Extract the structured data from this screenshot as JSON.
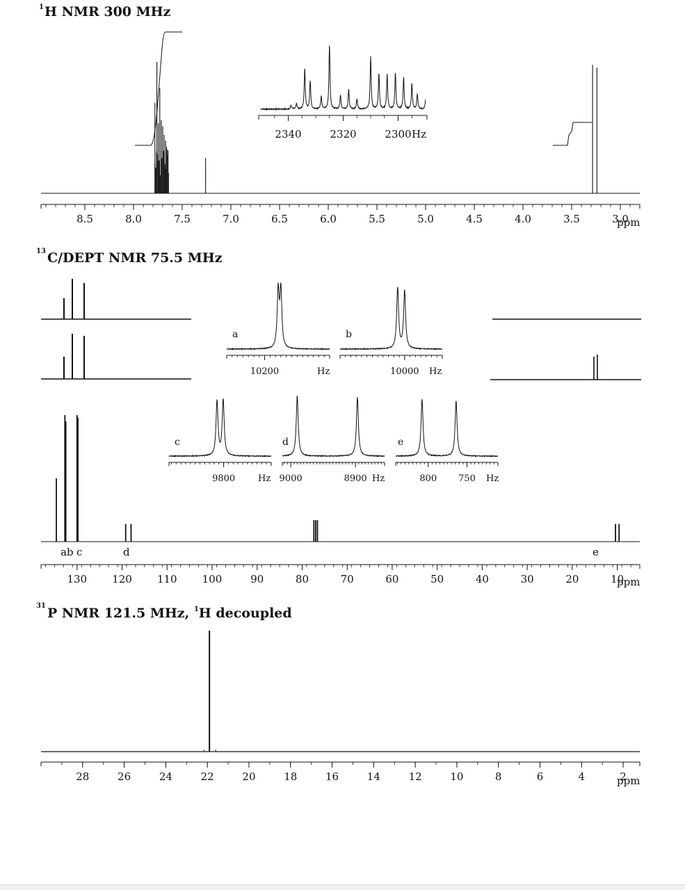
{
  "panels": {
    "h": {
      "title_sup": "1",
      "title": "H NMR 300 MHz",
      "unit": "ppm",
      "ticks": [
        "8.5",
        "8.0",
        "7.5",
        "7.0",
        "6.5",
        "6.0",
        "5.5",
        "5.0",
        "4.5",
        "4.0",
        "3.5",
        "3.0"
      ],
      "inset": {
        "unit": "Hz",
        "ticks": [
          "2340",
          "2320",
          "2300"
        ]
      }
    },
    "c": {
      "title_sup": "13",
      "title": "C/DEPT NMR 75.5 MHz",
      "unit": "ppm",
      "ticks": [
        "130",
        "120",
        "110",
        "100",
        "90",
        "80",
        "70",
        "60",
        "50",
        "40",
        "30",
        "20",
        "10"
      ],
      "peak_labels": [
        "ab",
        "c",
        "d",
        "e"
      ],
      "insets": [
        {
          "letter": "a",
          "ticks": [
            "10200"
          ],
          "unit": "Hz"
        },
        {
          "letter": "b",
          "ticks": [
            "10000"
          ],
          "unit": "Hz"
        },
        {
          "letter": "c",
          "ticks": [
            "9800"
          ],
          "unit": "Hz"
        },
        {
          "letter": "d",
          "ticks": [
            "9000",
            "8900"
          ],
          "unit": "Hz"
        },
        {
          "letter": "e",
          "ticks": [
            "800",
            "750"
          ],
          "unit": "Hz"
        }
      ]
    },
    "p": {
      "title_sup": "31",
      "title_pre": "P NMR 121.5 MHz, ",
      "title_sup2": "1",
      "title_post": "H decoupled",
      "unit": "ppm",
      "ticks": [
        "28",
        "26",
        "24",
        "22",
        "20",
        "18",
        "16",
        "14",
        "12",
        "10",
        "8",
        "6",
        "4",
        "2"
      ]
    }
  },
  "chart_data": [
    {
      "type": "line",
      "title": "1H NMR 300 MHz",
      "xlabel": "ppm",
      "x_reversed": true,
      "xlim": [
        8.95,
        2.8
      ],
      "peaks_ppm": [
        {
          "x": 7.78,
          "h": 0.62
        },
        {
          "x": 7.76,
          "h": 0.9
        },
        {
          "x": 7.745,
          "h": 0.48
        },
        {
          "x": 7.73,
          "h": 0.72
        },
        {
          "x": 7.715,
          "h": 0.5
        },
        {
          "x": 7.7,
          "h": 0.46
        },
        {
          "x": 7.685,
          "h": 0.4
        },
        {
          "x": 7.67,
          "h": 0.36
        },
        {
          "x": 7.655,
          "h": 0.3
        },
        {
          "x": 7.64,
          "h": 0.14
        },
        {
          "x": 7.26,
          "h": 0.24
        },
        {
          "x": 3.285,
          "h": 0.88
        },
        {
          "x": 3.24,
          "h": 0.86
        }
      ],
      "integrals": [
        {
          "from": 8.2,
          "to": 7.5
        },
        {
          "from": 3.5,
          "to": 2.98
        }
      ],
      "inset": {
        "xlabel": "Hz",
        "xlim": [
          2350,
          2290
        ],
        "peaks_hz": [
          {
            "x": 2339,
            "h": 0.05
          },
          {
            "x": 2337,
            "h": 0.08
          },
          {
            "x": 2334,
            "h": 0.58
          },
          {
            "x": 2332,
            "h": 0.4
          },
          {
            "x": 2328,
            "h": 0.18
          },
          {
            "x": 2325,
            "h": 0.92
          },
          {
            "x": 2321,
            "h": 0.2
          },
          {
            "x": 2318,
            "h": 0.28
          },
          {
            "x": 2315,
            "h": 0.14
          },
          {
            "x": 2310,
            "h": 0.75
          },
          {
            "x": 2307,
            "h": 0.52
          },
          {
            "x": 2304,
            "h": 0.5
          },
          {
            "x": 2301,
            "h": 0.52
          },
          {
            "x": 2298,
            "h": 0.45
          },
          {
            "x": 2295,
            "h": 0.36
          },
          {
            "x": 2293,
            "h": 0.22
          },
          {
            "x": 2290,
            "h": 0.14
          }
        ]
      }
    },
    {
      "type": "line",
      "title": "13C/DEPT NMR 75.5 MHz",
      "xlabel": "ppm",
      "x_reversed": true,
      "xlim": [
        138,
        5
      ],
      "peaks_ppm": [
        {
          "x": 134.6,
          "h": 0.5,
          "label": "a"
        },
        {
          "x": 132.7,
          "h": 1.0,
          "label": "b"
        },
        {
          "x": 132.5,
          "h": 0.95
        },
        {
          "x": 130.0,
          "h": 1.0,
          "label": "c"
        },
        {
          "x": 129.8,
          "h": 0.98
        },
        {
          "x": 119.2,
          "h": 0.14,
          "label": "d"
        },
        {
          "x": 118.0,
          "h": 0.14
        },
        {
          "x": 77.4,
          "h": 0.17
        },
        {
          "x": 77.0,
          "h": 0.17
        },
        {
          "x": 76.6,
          "h": 0.17
        },
        {
          "x": 10.4,
          "h": 0.14,
          "label": "e"
        },
        {
          "x": 9.6,
          "h": 0.14
        }
      ],
      "insets_hz": [
        {
          "label": "a",
          "xlim": [
            10270,
            10080
          ],
          "peaks": [
            {
              "x": 10175,
              "h": 1
            },
            {
              "x": 10170,
              "h": 1
            }
          ]
        },
        {
          "label": "b",
          "xlim": [
            10120,
            9930
          ],
          "peaks": [
            {
              "x": 10013,
              "h": 1
            },
            {
              "x": 10000,
              "h": 0.95
            }
          ]
        },
        {
          "label": "c",
          "xlim": [
            9915,
            9700
          ],
          "peaks": [
            {
              "x": 9814,
              "h": 0.95
            },
            {
              "x": 9801,
              "h": 0.97
            }
          ]
        },
        {
          "label": "d",
          "xlim": [
            9013,
            8855
          ],
          "peaks": [
            {
              "x": 8990,
              "h": 0.95
            },
            {
              "x": 8897,
              "h": 0.93
            }
          ]
        },
        {
          "label": "e",
          "xlim": [
            842,
            710
          ],
          "peaks": [
            {
              "x": 808,
              "h": 0.95
            },
            {
              "x": 764,
              "h": 0.92
            }
          ]
        }
      ]
    },
    {
      "type": "line",
      "title": "31P NMR 121.5 MHz, 1H decoupled",
      "xlabel": "ppm",
      "x_reversed": true,
      "xlim": [
        30.0,
        1.2
      ],
      "peaks_ppm": [
        {
          "x": 21.9,
          "h": 1.0
        }
      ]
    }
  ]
}
